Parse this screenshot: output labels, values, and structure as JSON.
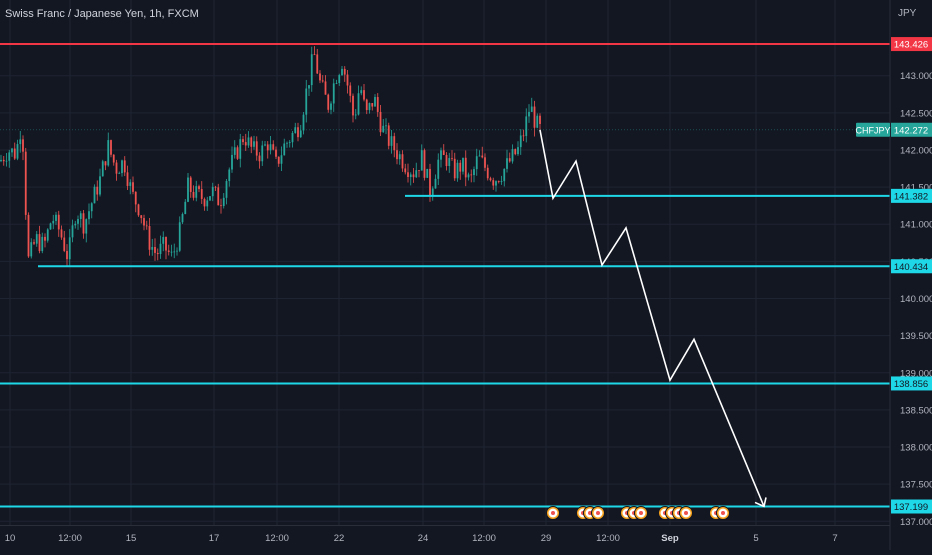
{
  "title": "Swiss Franc / Japanese Yen, 1h, FXCM",
  "currency": "JPY",
  "colors": {
    "background": "#131722",
    "grid": "#1f2433",
    "up": "#26a69a",
    "down": "#ef5350",
    "support": "#1ed8e8",
    "resistance": "#f23645",
    "projection": "#ffffff",
    "axis_text": "#b2b5be",
    "current_badge": "#26a69a"
  },
  "chart_data": {
    "type": "candlestick",
    "ylim": [
      136.95,
      143.75
    ],
    "y_ticks": [
      "143.000",
      "142.500",
      "142.000",
      "141.500",
      "141.000",
      "140.500",
      "140.000",
      "139.500",
      "139.000",
      "138.500",
      "138.000",
      "137.500",
      "137.000"
    ],
    "x_ticks": [
      "10",
      "12:00",
      "15",
      "17",
      "12:00",
      "22",
      "24",
      "12:00",
      "29",
      "12:00",
      "Sep",
      "5",
      "7"
    ],
    "symbol": "CHFJPY",
    "current_price": "142.272",
    "levels": [
      {
        "label": "143.426",
        "value": 143.426,
        "kind": "resistance"
      },
      {
        "label": "141.382",
        "value": 141.382,
        "kind": "support"
      },
      {
        "label": "140.434",
        "value": 140.434,
        "kind": "support"
      },
      {
        "label": "138.856",
        "value": 138.856,
        "kind": "support"
      },
      {
        "label": "137.199",
        "value": 137.199,
        "kind": "support"
      }
    ],
    "price_path": [
      [
        0,
        141.85
      ],
      [
        8,
        142.0
      ],
      [
        16,
        141.95
      ],
      [
        22,
        142.4
      ],
      [
        28,
        140.5
      ],
      [
        36,
        140.8
      ],
      [
        44,
        140.7
      ],
      [
        52,
        141.1
      ],
      [
        60,
        140.9
      ],
      [
        68,
        140.55
      ],
      [
        76,
        141.2
      ],
      [
        84,
        141.0
      ],
      [
        92,
        141.3
      ],
      [
        100,
        141.6
      ],
      [
        108,
        142.05
      ],
      [
        116,
        141.75
      ],
      [
        124,
        141.85
      ],
      [
        132,
        141.4
      ],
      [
        140,
        141.2
      ],
      [
        148,
        140.8
      ],
      [
        156,
        140.6
      ],
      [
        164,
        140.7
      ],
      [
        172,
        140.55
      ],
      [
        180,
        140.9
      ],
      [
        188,
        141.5
      ],
      [
        196,
        141.4
      ],
      [
        204,
        141.35
      ],
      [
        212,
        141.45
      ],
      [
        220,
        141.3
      ],
      [
        228,
        141.7
      ],
      [
        236,
        141.95
      ],
      [
        244,
        142.2
      ],
      [
        252,
        142.0
      ],
      [
        260,
        141.95
      ],
      [
        268,
        142.1
      ],
      [
        276,
        141.8
      ],
      [
        284,
        142.05
      ],
      [
        292,
        142.2
      ],
      [
        300,
        142.35
      ],
      [
        308,
        142.9
      ],
      [
        314,
        143.3
      ],
      [
        320,
        142.9
      ],
      [
        328,
        142.6
      ],
      [
        336,
        143.0
      ],
      [
        342,
        143.2
      ],
      [
        348,
        142.85
      ],
      [
        354,
        142.4
      ],
      [
        360,
        142.9
      ],
      [
        366,
        142.45
      ],
      [
        374,
        142.7
      ],
      [
        382,
        142.3
      ],
      [
        390,
        142.1
      ],
      [
        398,
        141.95
      ],
      [
        406,
        141.8
      ],
      [
        414,
        141.7
      ],
      [
        422,
        141.9
      ],
      [
        430,
        141.45
      ],
      [
        438,
        141.85
      ],
      [
        446,
        141.9
      ],
      [
        454,
        141.7
      ],
      [
        462,
        141.8
      ],
      [
        470,
        141.55
      ],
      [
        478,
        141.9
      ],
      [
        486,
        141.75
      ],
      [
        494,
        141.6
      ],
      [
        502,
        141.7
      ],
      [
        510,
        141.85
      ],
      [
        518,
        142.0
      ],
      [
        524,
        142.25
      ],
      [
        530,
        142.6
      ],
      [
        536,
        142.35
      ],
      [
        540,
        142.27
      ]
    ],
    "projection_path": [
      [
        540,
        142.27
      ],
      [
        553,
        141.35
      ],
      [
        576,
        141.85
      ],
      [
        602,
        140.45
      ],
      [
        626,
        140.95
      ],
      [
        670,
        138.9
      ],
      [
        694,
        139.45
      ],
      [
        764,
        137.2
      ]
    ],
    "event_markers_x": [
      553,
      583,
      590,
      598,
      627,
      634,
      641,
      665,
      672,
      679,
      686,
      716,
      723
    ]
  }
}
